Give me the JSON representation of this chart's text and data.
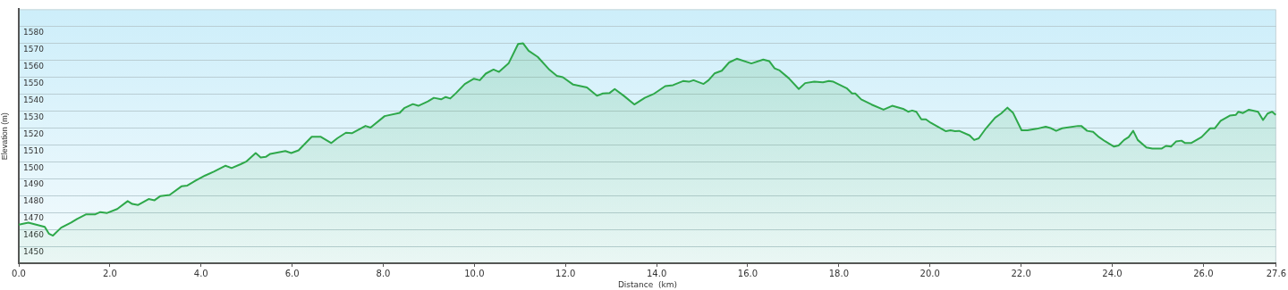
{
  "chart_data": {
    "type": "area",
    "xlabel": "Distance  (km)",
    "ylabel": "Elevation (m)",
    "xlim": [
      0,
      27.6
    ],
    "xticks": [
      {
        "value": 0,
        "label": "0.0"
      },
      {
        "value": 2,
        "label": "2.0"
      },
      {
        "value": 4,
        "label": "4.0"
      },
      {
        "value": 6,
        "label": "6.0"
      },
      {
        "value": 8,
        "label": "8.0"
      },
      {
        "value": 10,
        "label": "10.0"
      },
      {
        "value": 12,
        "label": "12.0"
      },
      {
        "value": 14,
        "label": "14.0"
      },
      {
        "value": 16,
        "label": "16.0"
      },
      {
        "value": 18,
        "label": "18.0"
      },
      {
        "value": 20,
        "label": "20.0"
      },
      {
        "value": 22,
        "label": "22.0"
      },
      {
        "value": 24,
        "label": "24.0"
      },
      {
        "value": 26,
        "label": "26.0"
      },
      {
        "value": 27.6,
        "label": "27.6"
      }
    ],
    "ylim": [
      1440,
      1590
    ],
    "yticks": [
      1450,
      1460,
      1470,
      1480,
      1490,
      1500,
      1510,
      1520,
      1530,
      1540,
      1550,
      1560,
      1570,
      1580
    ],
    "grid": "y",
    "legend": false,
    "series": [
      {
        "color": "#2ea84a",
        "x": [
          0,
          0.21,
          0.57,
          0.66,
          0.75,
          0.93,
          1.15,
          1.28,
          1.48,
          1.68,
          1.79,
          1.94,
          2.16,
          2.39,
          2.49,
          2.62,
          2.85,
          2.98,
          3.11,
          3.31,
          3.57,
          3.7,
          3.89,
          4.09,
          4.28,
          4.54,
          4.67,
          4.87,
          5.0,
          5.2,
          5.31,
          5.42,
          5.52,
          5.85,
          5.98,
          6.14,
          6.43,
          6.63,
          6.86,
          6.99,
          7.18,
          7.31,
          7.61,
          7.72,
          8.03,
          8.36,
          8.46,
          8.65,
          8.77,
          8.98,
          9.11,
          9.27,
          9.37,
          9.47,
          9.6,
          9.79,
          9.99,
          10.12,
          10.25,
          10.42,
          10.54,
          10.75,
          10.96,
          11.07,
          11.19,
          11.39,
          11.65,
          11.81,
          11.94,
          12.17,
          12.47,
          12.69,
          12.82,
          12.97,
          13.08,
          13.28,
          13.51,
          13.74,
          13.93,
          14.19,
          14.36,
          14.58,
          14.71,
          14.81,
          15.03,
          15.14,
          15.27,
          15.43,
          15.59,
          15.76,
          16.08,
          16.34,
          16.47,
          16.59,
          16.7,
          16.9,
          17.12,
          17.26,
          17.46,
          17.65,
          17.78,
          17.88,
          18.17,
          18.29,
          18.36,
          18.49,
          18.72,
          18.98,
          19.17,
          19.41,
          19.52,
          19.61,
          19.7,
          19.81,
          19.91,
          20.02,
          20.35,
          20.45,
          20.55,
          20.64,
          20.87,
          20.97,
          21.07,
          21.23,
          21.43,
          21.56,
          21.7,
          21.82,
          22.01,
          22.14,
          22.34,
          22.54,
          22.66,
          22.77,
          22.9,
          23.25,
          23.32,
          23.45,
          23.58,
          23.71,
          23.84,
          24.04,
          24.14,
          24.26,
          24.36,
          24.46,
          24.56,
          24.75,
          24.88,
          25.08,
          25.18,
          25.29,
          25.4,
          25.52,
          25.6,
          25.73,
          25.96,
          26.15,
          26.25,
          26.38,
          26.58,
          26.71,
          26.77,
          26.87,
          27.0,
          27.2,
          27.31,
          27.41,
          27.51,
          27.59
        ],
        "values": [
          1462.8,
          1464,
          1461.5,
          1457.5,
          1456.3,
          1461,
          1464,
          1466.2,
          1468.9,
          1468.9,
          1470.2,
          1469.7,
          1472,
          1476.7,
          1475,
          1474.4,
          1477.9,
          1477.2,
          1479.7,
          1480.3,
          1485.4,
          1485.9,
          1488.9,
          1491.8,
          1494.1,
          1497.6,
          1496.2,
          1498.5,
          1500.2,
          1505.1,
          1502.5,
          1502.8,
          1504.6,
          1506.3,
          1505.1,
          1506.7,
          1514.7,
          1514.7,
          1511,
          1513.8,
          1517.1,
          1516.8,
          1521.1,
          1520.1,
          1526.9,
          1528.8,
          1531.6,
          1534,
          1533,
          1535.6,
          1537.7,
          1536.8,
          1538.2,
          1537.3,
          1540.6,
          1545.9,
          1549,
          1548.1,
          1552,
          1554.4,
          1553,
          1558,
          1569.5,
          1569.9,
          1565.5,
          1561.9,
          1554.2,
          1550.7,
          1549.9,
          1545.5,
          1543.8,
          1538.9,
          1540.3,
          1540.6,
          1542.9,
          1538.9,
          1533.8,
          1537.7,
          1539.9,
          1544.6,
          1545.2,
          1547.6,
          1547.2,
          1548.1,
          1545.9,
          1548.1,
          1552.1,
          1553.7,
          1558.6,
          1560.8,
          1558,
          1560.3,
          1559.4,
          1555.1,
          1553.9,
          1549.3,
          1542.9,
          1546.4,
          1547.2,
          1546.9,
          1547.6,
          1547.2,
          1543.4,
          1540.3,
          1540.3,
          1536.8,
          1533.7,
          1530.7,
          1533,
          1531.2,
          1529.5,
          1530.2,
          1529.5,
          1525,
          1525,
          1522.9,
          1518,
          1518.5,
          1518,
          1518.2,
          1515.5,
          1512.8,
          1513.8,
          1519.7,
          1526,
          1528.4,
          1531.9,
          1529,
          1518.5,
          1518.5,
          1519.4,
          1520.6,
          1519.7,
          1518.2,
          1519.7,
          1521.1,
          1521.1,
          1518.2,
          1517.6,
          1514.5,
          1512.1,
          1508.9,
          1509.6,
          1512.8,
          1514.5,
          1518.2,
          1512.8,
          1508.4,
          1507.7,
          1507.7,
          1509.3,
          1508.9,
          1511.9,
          1512.4,
          1511,
          1511,
          1514.5,
          1519.7,
          1519.7,
          1524.1,
          1527.2,
          1527.6,
          1529.5,
          1528.7,
          1530.7,
          1529.5,
          1524.6,
          1528.4,
          1529.5,
          1527.6
        ]
      }
    ]
  }
}
